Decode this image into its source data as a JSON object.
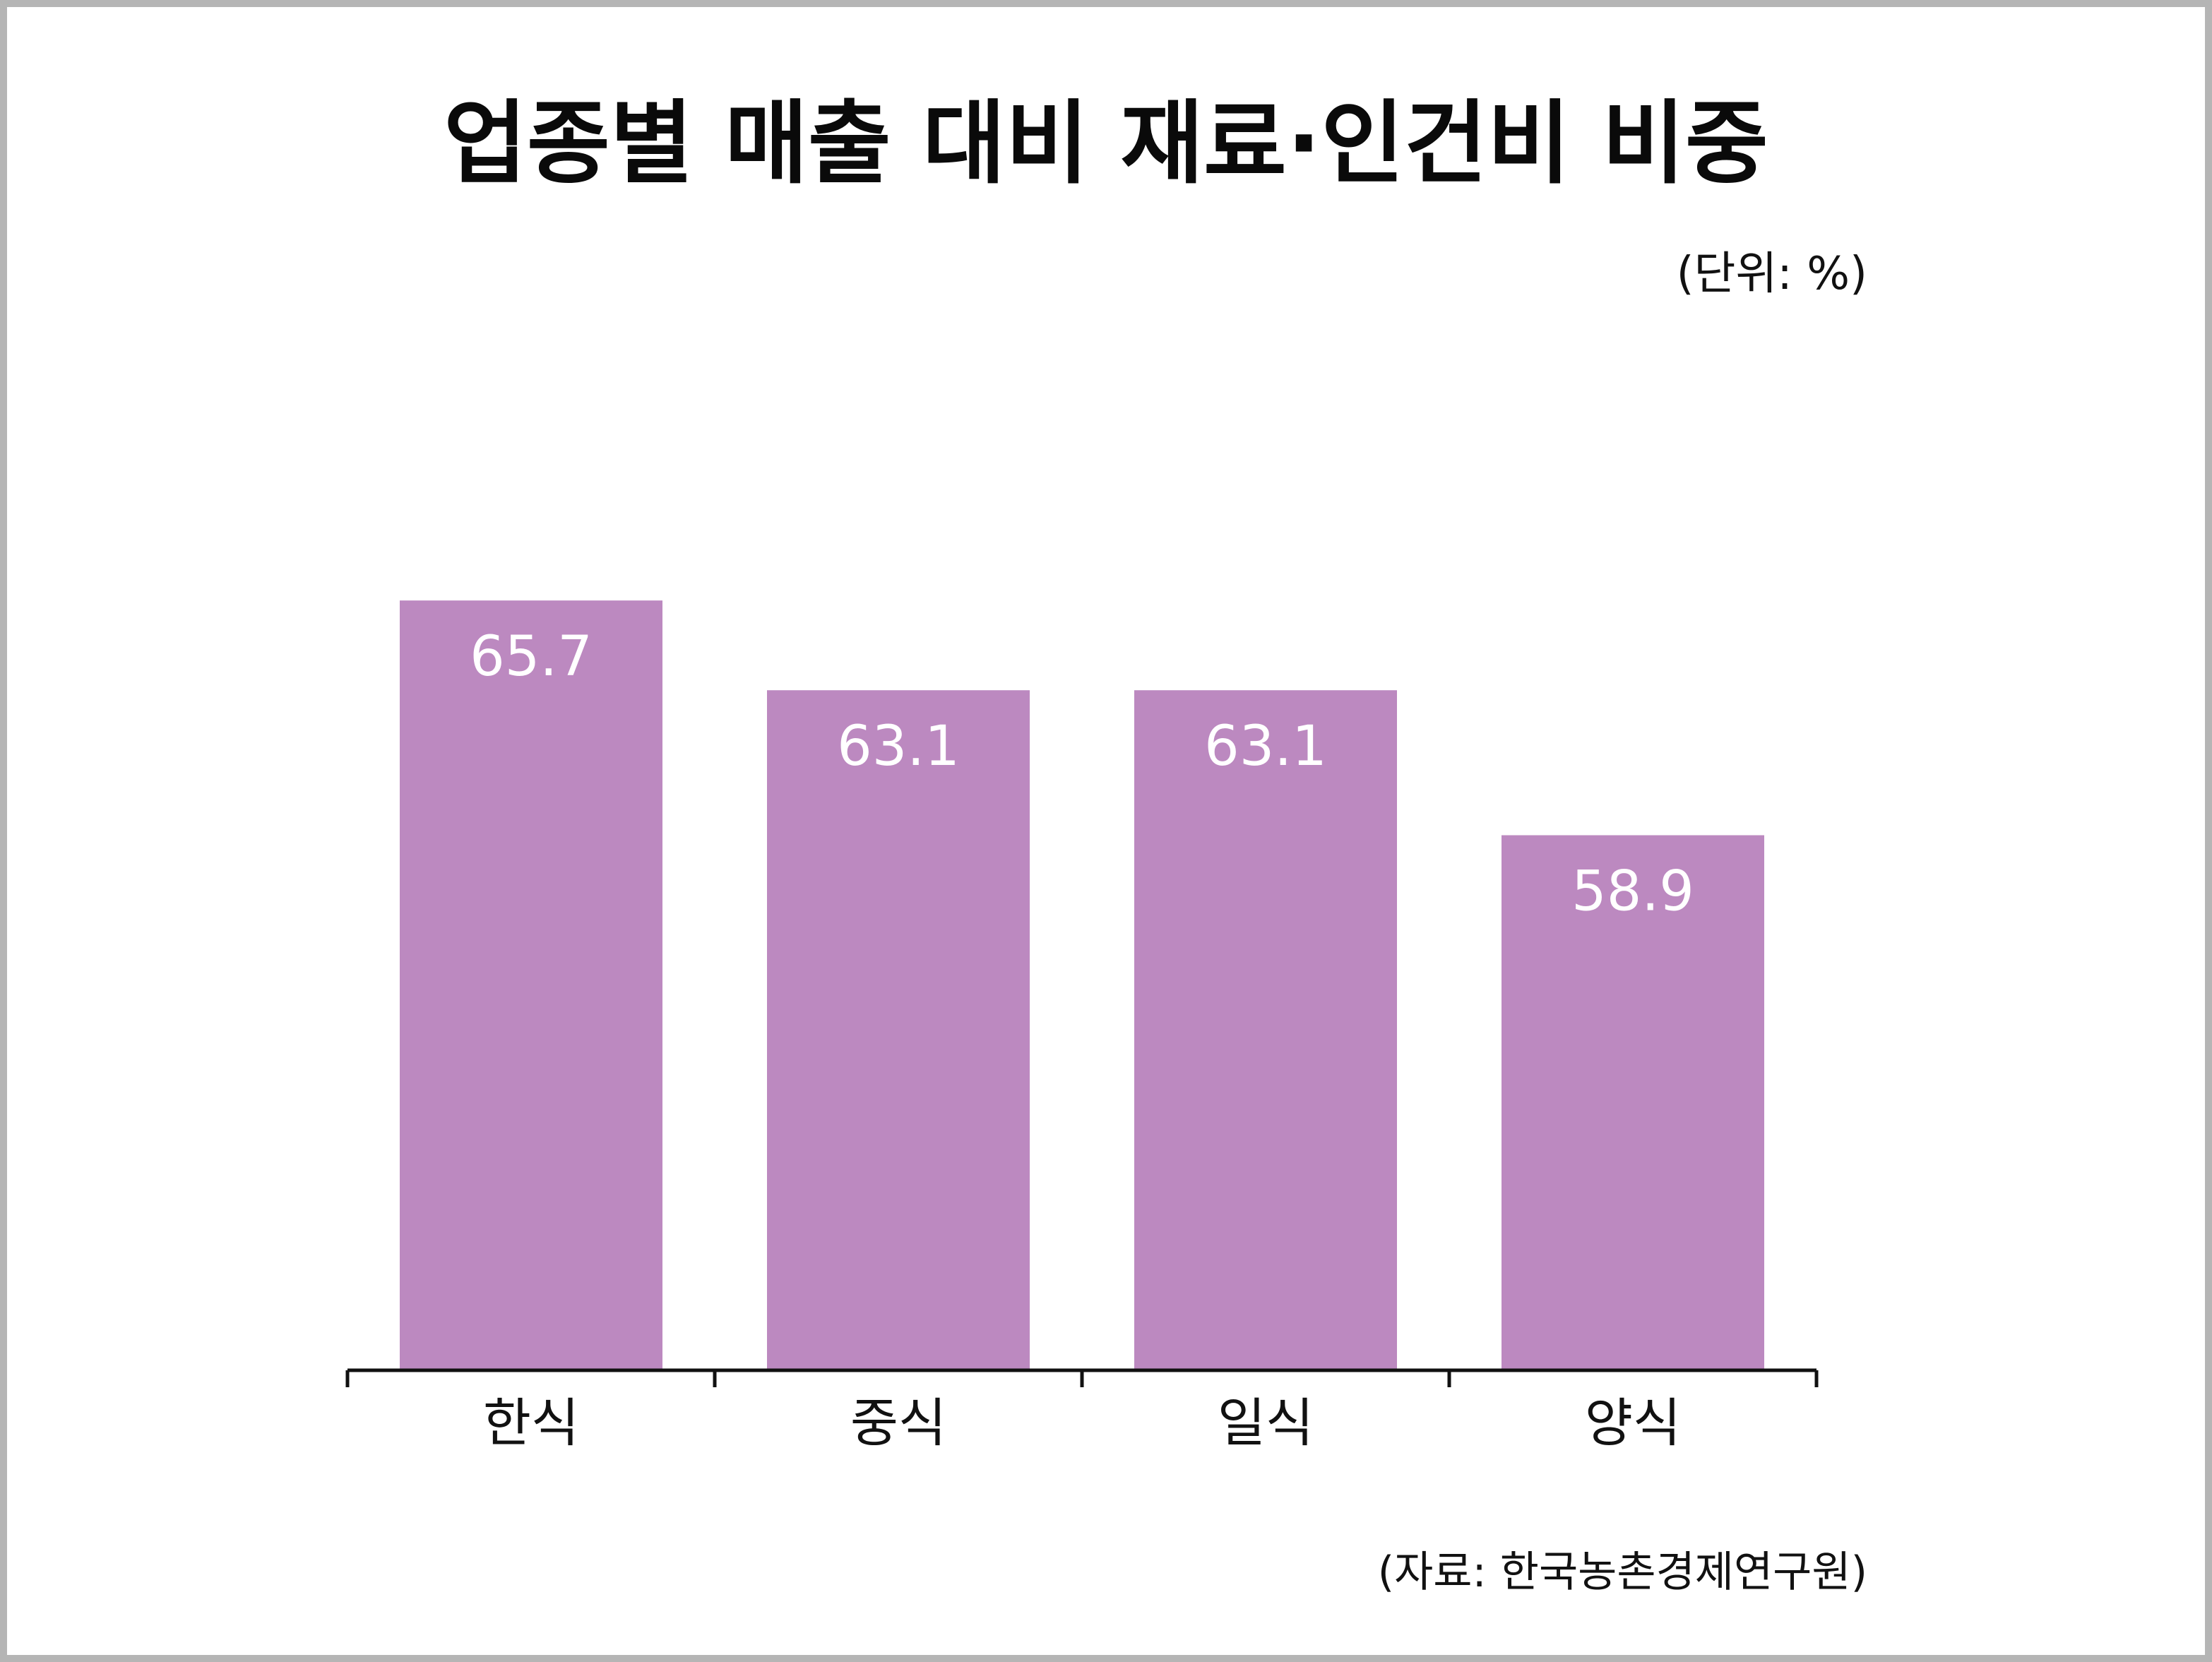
{
  "title": "업종별 매출 대비 재료·인건비 비중",
  "unit_note": "(단위: %)",
  "source_note": "(자료: 한국농촌경제연구원)",
  "colors": {
    "bar": "#bc89c0",
    "axis": "#111111",
    "value_label": "#ffffff"
  },
  "chart_data": {
    "type": "bar",
    "categories": [
      "한식",
      "중식",
      "일식",
      "양식"
    ],
    "values": [
      65.7,
      63.1,
      63.1,
      58.9
    ],
    "value_labels": [
      "65.7",
      "63.1",
      "63.1",
      "58.9"
    ],
    "title": "업종별 매출 대비 재료·인건비 비중",
    "xlabel": "",
    "ylabel": "",
    "ylim": [
      43.4,
      70
    ],
    "grid": false,
    "legend": "none"
  }
}
